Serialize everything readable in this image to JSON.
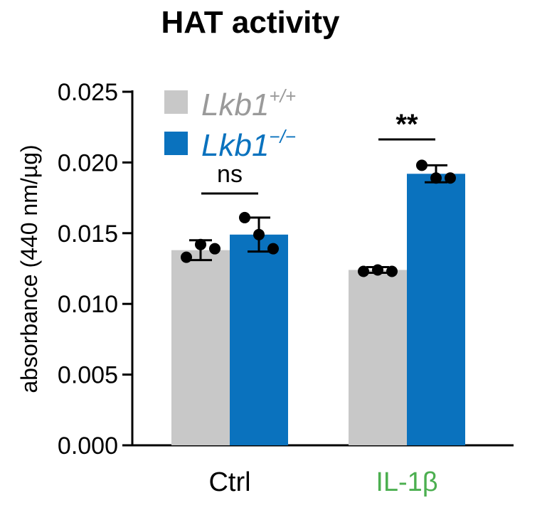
{
  "chart_data": {
    "type": "bar",
    "title": "HAT activity",
    "ylabel": "absorbance (440 nm/µg)",
    "xlabel": "",
    "ylim": [
      0,
      0.025
    ],
    "yticks": [
      "0.000",
      "0.005",
      "0.010",
      "0.015",
      "0.020",
      "0.025"
    ],
    "categories": [
      "Ctrl",
      "IL-1β"
    ],
    "category_colors": [
      "#000000",
      "#4caf50"
    ],
    "series": [
      {
        "name": "Lkb1",
        "name_sup": "+/+",
        "color": "#c8c8c8",
        "values": [
          0.0138,
          0.0124
        ],
        "error": [
          0.0007,
          0.0002
        ],
        "points": [
          [
            0.0133,
            0.0142,
            0.0139
          ],
          [
            0.0123,
            0.0124,
            0.0123
          ]
        ]
      },
      {
        "name": "Lkb1",
        "name_sup": "−/−",
        "color": "#0a72be",
        "values": [
          0.0149,
          0.0192
        ],
        "error": [
          0.0012,
          0.0006
        ],
        "points": [
          [
            0.0161,
            0.0149,
            0.0139
          ],
          [
            0.0198,
            0.0189,
            0.0189
          ]
        ]
      }
    ],
    "significance": [
      "ns",
      "**"
    ],
    "grid": false,
    "legend": "top-left"
  }
}
